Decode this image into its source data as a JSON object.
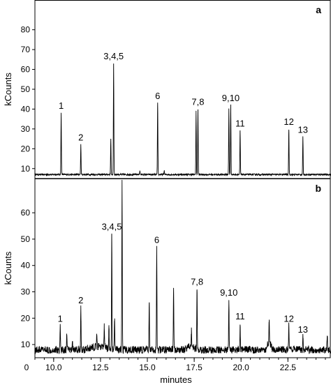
{
  "chart_data": [
    {
      "type": "line",
      "panel_label": "a",
      "ylabel": "kCounts",
      "xlabel": "",
      "xlim": [
        9.0,
        24.8
      ],
      "ylim": [
        5,
        95
      ],
      "yticks": [
        10,
        20,
        30,
        40,
        50,
        60,
        70,
        80
      ],
      "baseline": 7,
      "noise": 0.4,
      "peaks": [
        {
          "label": "1",
          "x": 10.4,
          "y": 38
        },
        {
          "label": "2",
          "x": 11.45,
          "y": 22
        },
        {
          "label": "",
          "x": 13.05,
          "y": 25
        },
        {
          "label": "3,4,5",
          "x": 13.2,
          "y": 63
        },
        {
          "label": "",
          "x": 14.6,
          "y": 9
        },
        {
          "label": "6",
          "x": 15.55,
          "y": 43
        },
        {
          "label": "",
          "x": 15.9,
          "y": 9
        },
        {
          "label": "",
          "x": 17.6,
          "y": 39
        },
        {
          "label": "7,8",
          "x": 17.7,
          "y": 40
        },
        {
          "label": "",
          "x": 19.35,
          "y": 40
        },
        {
          "label": "9,10",
          "x": 19.45,
          "y": 42
        },
        {
          "label": "11",
          "x": 19.95,
          "y": 29
        },
        {
          "label": "12",
          "x": 22.55,
          "y": 30
        },
        {
          "label": "13",
          "x": 23.3,
          "y": 26
        }
      ]
    },
    {
      "type": "line",
      "panel_label": "b",
      "ylabel": "kCounts",
      "xlabel": "minutes",
      "xlim": [
        9.0,
        24.8
      ],
      "ylim": [
        5,
        73
      ],
      "yticks": [
        0,
        10,
        20,
        30,
        40,
        50,
        60
      ],
      "xticks": [
        10.0,
        12.5,
        15.0,
        17.5,
        20.0,
        22.5
      ],
      "xticklabels": [
        "10.0",
        "12.5",
        "15.0",
        "17.5",
        "20.0",
        "22.5"
      ],
      "xaxis_zero_label": "0",
      "baseline": 8,
      "noise": 1.4,
      "peaks": [
        {
          "label": "1",
          "x": 10.35,
          "y": 17
        },
        {
          "label": "",
          "x": 10.7,
          "y": 14
        },
        {
          "label": "",
          "x": 11.0,
          "y": 12
        },
        {
          "label": "2",
          "x": 11.45,
          "y": 24
        },
        {
          "label": "",
          "x": 12.3,
          "y": 12
        },
        {
          "label": "",
          "x": 12.7,
          "y": 16
        },
        {
          "label": "",
          "x": 12.95,
          "y": 17
        },
        {
          "label": "3,4,5",
          "x": 13.1,
          "y": 52
        },
        {
          "label": "",
          "x": 13.25,
          "y": 20
        },
        {
          "label": "",
          "x": 13.65,
          "y": 72
        },
        {
          "label": "",
          "x": 15.1,
          "y": 27
        },
        {
          "label": "6",
          "x": 15.5,
          "y": 47
        },
        {
          "label": "",
          "x": 16.4,
          "y": 32
        },
        {
          "label": "7,8",
          "x": 17.65,
          "y": 31
        },
        {
          "label": "",
          "x": 17.35,
          "y": 14
        },
        {
          "label": "9,10",
          "x": 19.35,
          "y": 27
        },
        {
          "label": "11",
          "x": 19.95,
          "y": 18
        },
        {
          "label": "",
          "x": 21.5,
          "y": 16
        },
        {
          "label": "12",
          "x": 22.55,
          "y": 17
        },
        {
          "label": "13",
          "x": 23.3,
          "y": 13
        },
        {
          "label": "",
          "x": 24.6,
          "y": 14
        }
      ]
    }
  ]
}
